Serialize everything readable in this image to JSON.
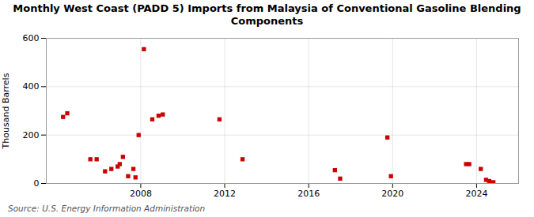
{
  "chart_data": {
    "type": "scatter",
    "title": "Monthly West Coast (PADD 5) Imports from Malaysia of Conventional Gasoline Blending\nComponents",
    "ylabel": "Thousand Barrels",
    "annotations": [
      "Source: U.S. Energy Information Administration"
    ],
    "color": "#cc0000",
    "marker": "square",
    "grid": true,
    "xlim": [
      2003.5,
      2026.0
    ],
    "xticks": [
      2008,
      2012,
      2016,
      2020,
      2024
    ],
    "ylim": [
      0,
      600
    ],
    "yticks": [
      0,
      200,
      400,
      600
    ],
    "x": [
      2004.3,
      2004.5,
      2005.6,
      2005.9,
      2006.3,
      2006.6,
      2006.9,
      2007.0,
      2007.15,
      2007.4,
      2007.65,
      2007.75,
      2007.9,
      2008.15,
      2008.55,
      2008.85,
      2009.05,
      2011.75,
      2012.85,
      2017.25,
      2017.5,
      2019.75,
      2019.92,
      2023.5,
      2023.65,
      2024.2,
      2024.45,
      2024.6,
      2024.8
    ],
    "values": [
      275,
      290,
      100,
      100,
      50,
      60,
      70,
      80,
      110,
      30,
      60,
      25,
      200,
      555,
      265,
      280,
      285,
      265,
      100,
      55,
      20,
      190,
      30,
      80,
      80,
      60,
      15,
      10,
      5
    ]
  }
}
